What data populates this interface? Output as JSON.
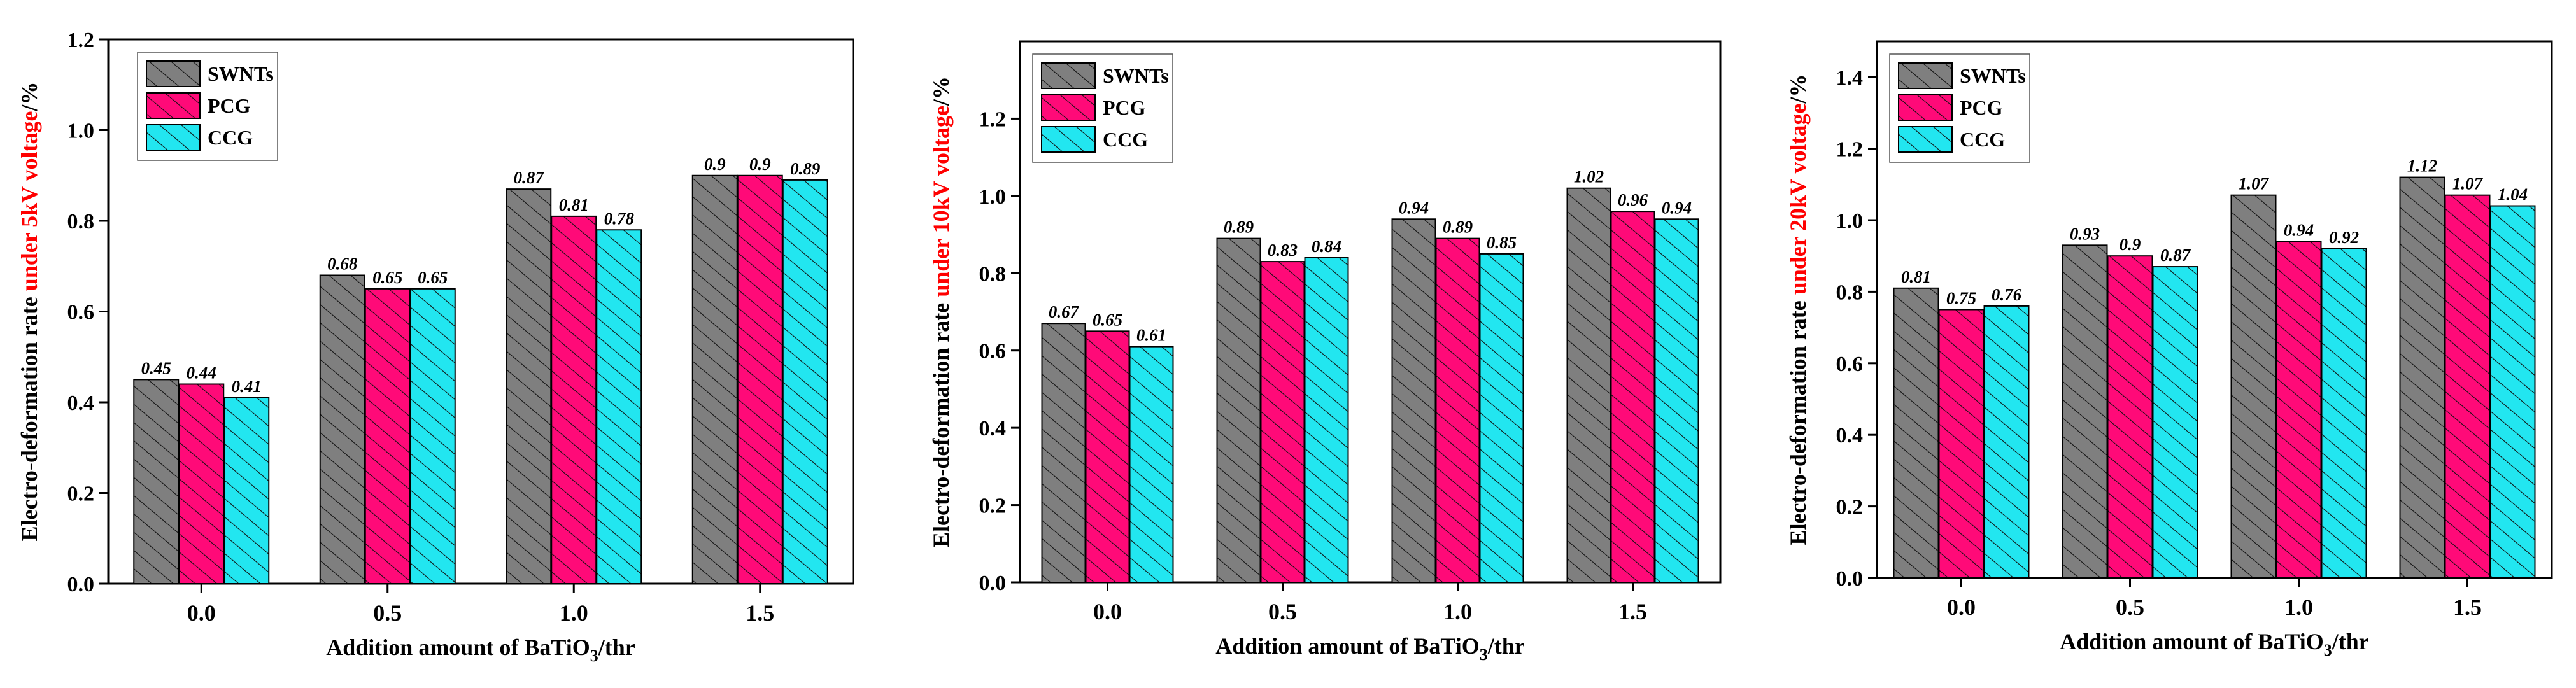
{
  "chart_data": [
    {
      "type": "bar",
      "categories": [
        "0.0",
        "0.5",
        "1.0",
        "1.5"
      ],
      "series": [
        {
          "name": "SWNTs",
          "values": [
            0.45,
            0.68,
            0.87,
            0.9
          ],
          "labels": [
            "0.45",
            "0.68",
            "0.87",
            "0.9"
          ]
        },
        {
          "name": "PCG",
          "values": [
            0.44,
            0.65,
            0.81,
            0.9
          ],
          "labels": [
            "0.44",
            "0.65",
            "0.81",
            "0.9"
          ]
        },
        {
          "name": "CCG",
          "values": [
            0.41,
            0.65,
            0.78,
            0.89
          ],
          "labels": [
            "0.41",
            "0.65",
            "0.78",
            "0.89"
          ]
        }
      ],
      "ylabel_prefix": "Electro-deformation rate ",
      "ylabel_highlight": "under 5kV voltage",
      "ylabel_suffix": "/%",
      "xlabel_main": "Addition amount of BaTiO",
      "xlabel_sub": "3",
      "xlabel_suffix": "/thr",
      "ylim": [
        0,
        1.2
      ],
      "yticks": [
        "0.0",
        "0.2",
        "0.4",
        "0.6",
        "0.8",
        "1.0",
        "1.2"
      ],
      "legend_position": "top-left"
    },
    {
      "type": "bar",
      "categories": [
        "0.0",
        "0.5",
        "1.0",
        "1.5"
      ],
      "series": [
        {
          "name": "SWNTs",
          "values": [
            0.67,
            0.89,
            0.94,
            1.02
          ],
          "labels": [
            "0.67",
            "0.89",
            "0.94",
            "1.02"
          ]
        },
        {
          "name": "PCG",
          "values": [
            0.65,
            0.83,
            0.89,
            0.96
          ],
          "labels": [
            "0.65",
            "0.83",
            "0.89",
            "0.96"
          ]
        },
        {
          "name": "CCG",
          "values": [
            0.61,
            0.84,
            0.85,
            0.94
          ],
          "labels": [
            "0.61",
            "0.84",
            "0.85",
            "0.94"
          ]
        }
      ],
      "ylabel_prefix": "Electro-deformation rate ",
      "ylabel_highlight": "under 10kV voltage",
      "ylabel_suffix": "/%",
      "xlabel_main": "Addition amount of BaTiO",
      "xlabel_sub": "3",
      "xlabel_suffix": "/thr",
      "ylim": [
        0,
        1.4
      ],
      "yticks": [
        "0.0",
        "0.2",
        "0.4",
        "0.6",
        "0.8",
        "1.0",
        "1.2"
      ],
      "legend_position": "top-left"
    },
    {
      "type": "bar",
      "categories": [
        "0.0",
        "0.5",
        "1.0",
        "1.5"
      ],
      "series": [
        {
          "name": "SWNTs",
          "values": [
            0.81,
            0.93,
            1.07,
            1.12
          ],
          "labels": [
            "0.81",
            "0.93",
            "1.07",
            "1.12"
          ]
        },
        {
          "name": "PCG",
          "values": [
            0.75,
            0.9,
            0.94,
            1.07
          ],
          "labels": [
            "0.75",
            "0.9",
            "0.94",
            "1.07"
          ]
        },
        {
          "name": "CCG",
          "values": [
            0.76,
            0.87,
            0.92,
            1.04
          ],
          "labels": [
            "0.76",
            "0.87",
            "0.92",
            "1.04"
          ]
        }
      ],
      "ylabel_prefix": "Electro-deformation rate ",
      "ylabel_highlight": "under 20kV voltage",
      "ylabel_suffix": "/%",
      "xlabel_main": "Addition amount of BaTiO",
      "xlabel_sub": "3",
      "xlabel_suffix": "/thr",
      "ylim": [
        0,
        1.5
      ],
      "yticks": [
        "0.0",
        "0.2",
        "0.4",
        "0.6",
        "0.8",
        "1.0",
        "1.2",
        "1.4"
      ],
      "legend_position": "top-left"
    }
  ],
  "colors": {
    "SWNTs": "#7f7f7f",
    "PCG": "#ff0a78",
    "CCG": "#22e6f0",
    "highlight": "#ff0000"
  }
}
